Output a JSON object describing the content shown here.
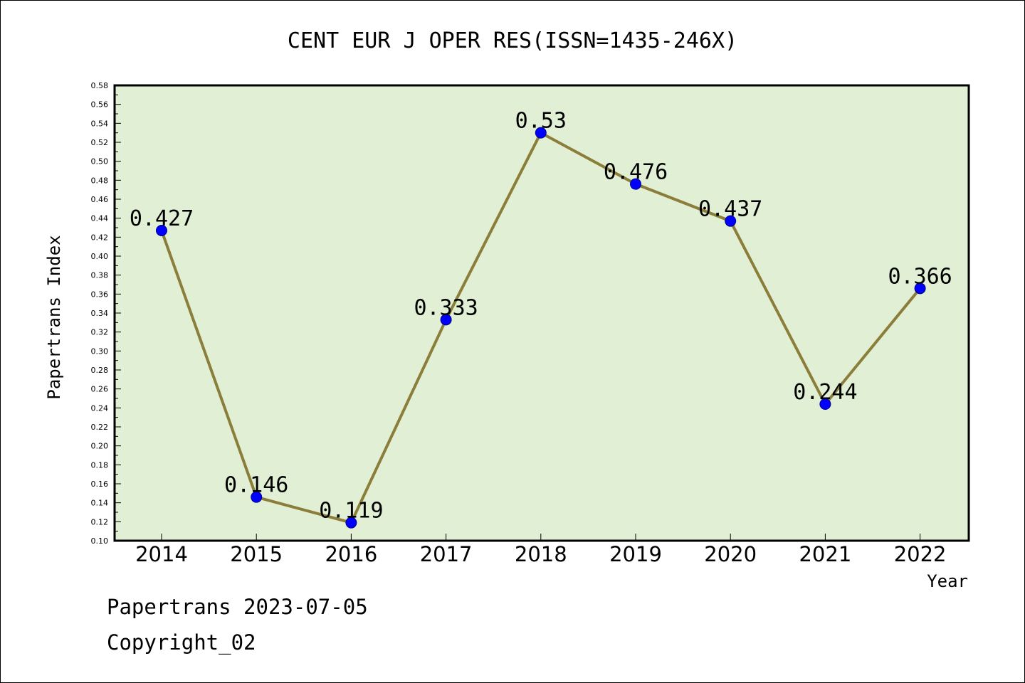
{
  "chart_data": {
    "type": "line",
    "title": "CENT EUR J OPER RES(ISSN=1435-246X)",
    "xlabel": "Year",
    "ylabel": "Papertrans Index",
    "categories": [
      "2014",
      "2015",
      "2016",
      "2017",
      "2018",
      "2019",
      "2020",
      "2021",
      "2022"
    ],
    "series": [
      {
        "values": [
          0.427,
          0.146,
          0.119,
          0.333,
          0.53,
          0.476,
          0.437,
          0.244,
          0.366
        ],
        "labels": [
          "0.427",
          "0.146",
          "0.119",
          "0.333",
          "0.53",
          "0.476",
          "0.437",
          "0.244",
          "0.366"
        ]
      }
    ],
    "ylim": [
      0.1,
      0.58
    ],
    "yticks": [
      "0.10",
      "0.12",
      "0.14",
      "0.16",
      "0.18",
      "0.20",
      "0.22",
      "0.24",
      "0.26",
      "0.28",
      "0.30",
      "0.32",
      "0.34",
      "0.36",
      "0.38",
      "0.40",
      "0.42",
      "0.44",
      "0.46",
      "0.48",
      "0.50",
      "0.52",
      "0.54",
      "0.56",
      "0.58"
    ],
    "grid": false,
    "colors": {
      "plot_background": "#e1efd4",
      "line": "#8b7d3a",
      "marker": "#0000ff"
    }
  },
  "footer": {
    "line1": "Papertrans 2023-07-05",
    "line2": "Copyright_02"
  }
}
